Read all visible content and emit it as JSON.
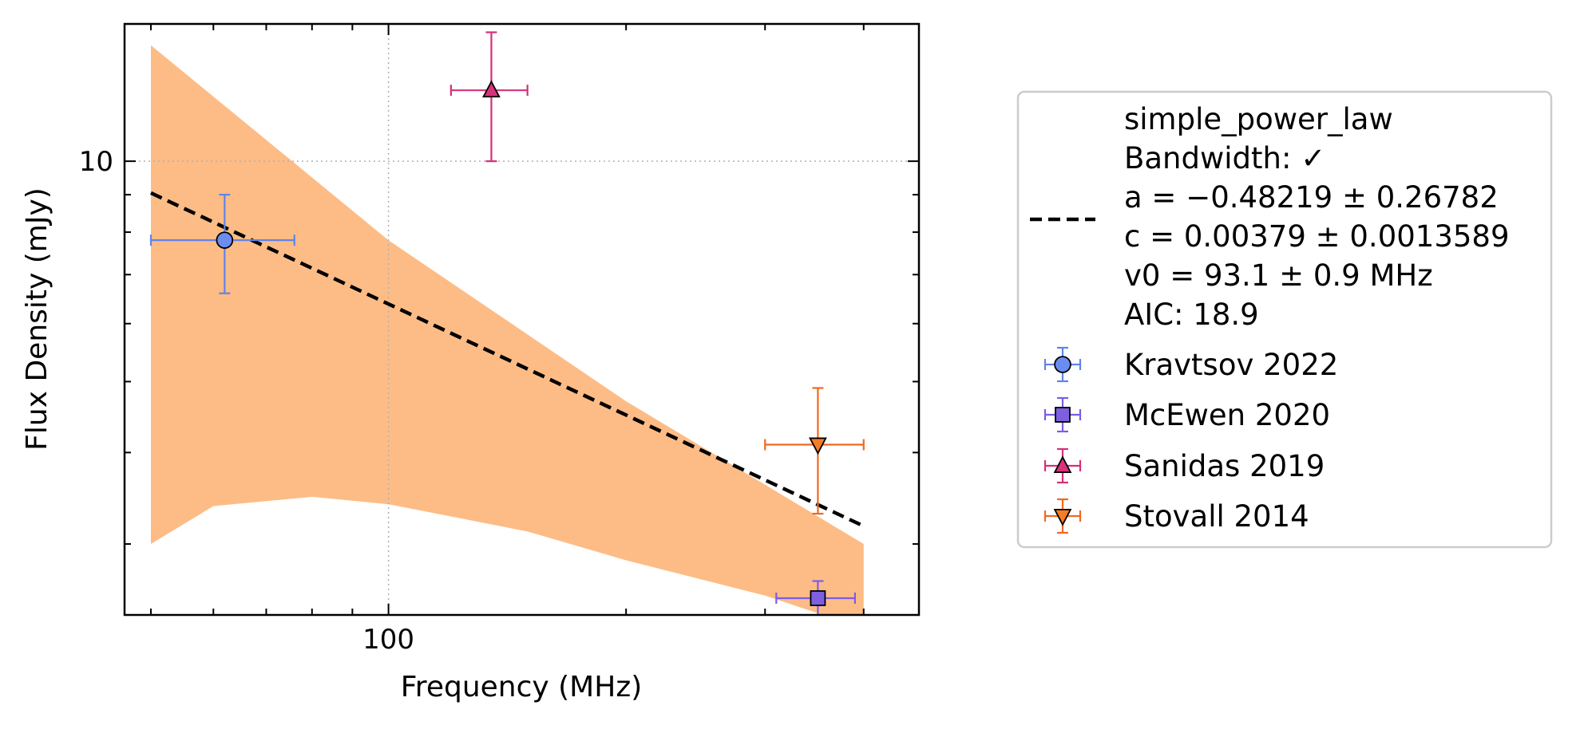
{
  "chart_data": {
    "type": "scatter",
    "xlabel": "Frequency (MHz)",
    "ylabel": "Flux Density (mJy)",
    "x_scale": "log",
    "y_scale": "log",
    "xlim": [
      46.3,
      470
    ],
    "ylim": [
      2.4,
      15.4
    ],
    "x_ticks": [
      {
        "value": 100,
        "label": "100"
      }
    ],
    "y_ticks": [
      {
        "value": 10,
        "label": "10"
      }
    ],
    "x_minor_ticks": [
      50,
      60,
      70,
      80,
      90,
      200,
      300,
      400
    ],
    "y_minor_ticks": [
      3,
      4,
      5,
      6,
      7,
      8,
      9
    ],
    "grid": true,
    "legend_position": "outside right",
    "fit": {
      "name": "simple_power_law",
      "lines": [
        "simple_power_law",
        "Bandwidth: ✓",
        "a = −0.48219 ± 0.26782",
        "c = 0.00379 ± 0.0013589",
        "v0 = 93.1 ± 0.9 MHz",
        "AIC: 18.9"
      ],
      "a": -0.48219,
      "c": 0.00379,
      "v0": 93.1,
      "x_range": [
        50,
        400
      ],
      "color": "#000000",
      "band_color": "#fdbc86",
      "band_upper": [
        [
          50,
          14.4
        ],
        [
          100,
          7.8
        ],
        [
          200,
          4.7
        ],
        [
          400,
          3.0
        ]
      ],
      "band_lower": [
        [
          50,
          3.0
        ],
        [
          60,
          3.38
        ],
        [
          80,
          3.48
        ],
        [
          100,
          3.4
        ],
        [
          150,
          3.12
        ],
        [
          200,
          2.85
        ],
        [
          300,
          2.55
        ],
        [
          400,
          2.3
        ]
      ]
    },
    "series": [
      {
        "name": "Kravtsov 2022",
        "marker": "circle",
        "color": "#6b8df0",
        "edge": "#5f84ea",
        "points": [
          {
            "x": 62,
            "y": 7.8,
            "xerr": [
              12,
              14
            ],
            "yerr": [
              1.2,
              1.2
            ]
          }
        ]
      },
      {
        "name": "McEwen 2020",
        "marker": "square",
        "color": "#7e5fe0",
        "edge": "#7b5de8",
        "points": [
          {
            "x": 350,
            "y": 2.53,
            "xerr": [
              40,
              40
            ],
            "yerr": [
              0.14,
              0.14
            ]
          }
        ]
      },
      {
        "name": "Sanidas 2019",
        "marker": "triangle-up",
        "color": "#d6337a",
        "edge": "#d4307a",
        "points": [
          {
            "x": 135,
            "y": 12.5,
            "xerr": [
              15,
              15
            ],
            "yerr": [
              2.5,
              2.5
            ]
          }
        ]
      },
      {
        "name": "Stovall 2014",
        "marker": "triangle-down",
        "color": "#f57c27",
        "edge": "#f0691f",
        "points": [
          {
            "x": 350,
            "y": 4.1,
            "xerr": [
              50,
              50
            ],
            "yerr": [
              0.8,
              0.8
            ]
          }
        ]
      }
    ]
  }
}
